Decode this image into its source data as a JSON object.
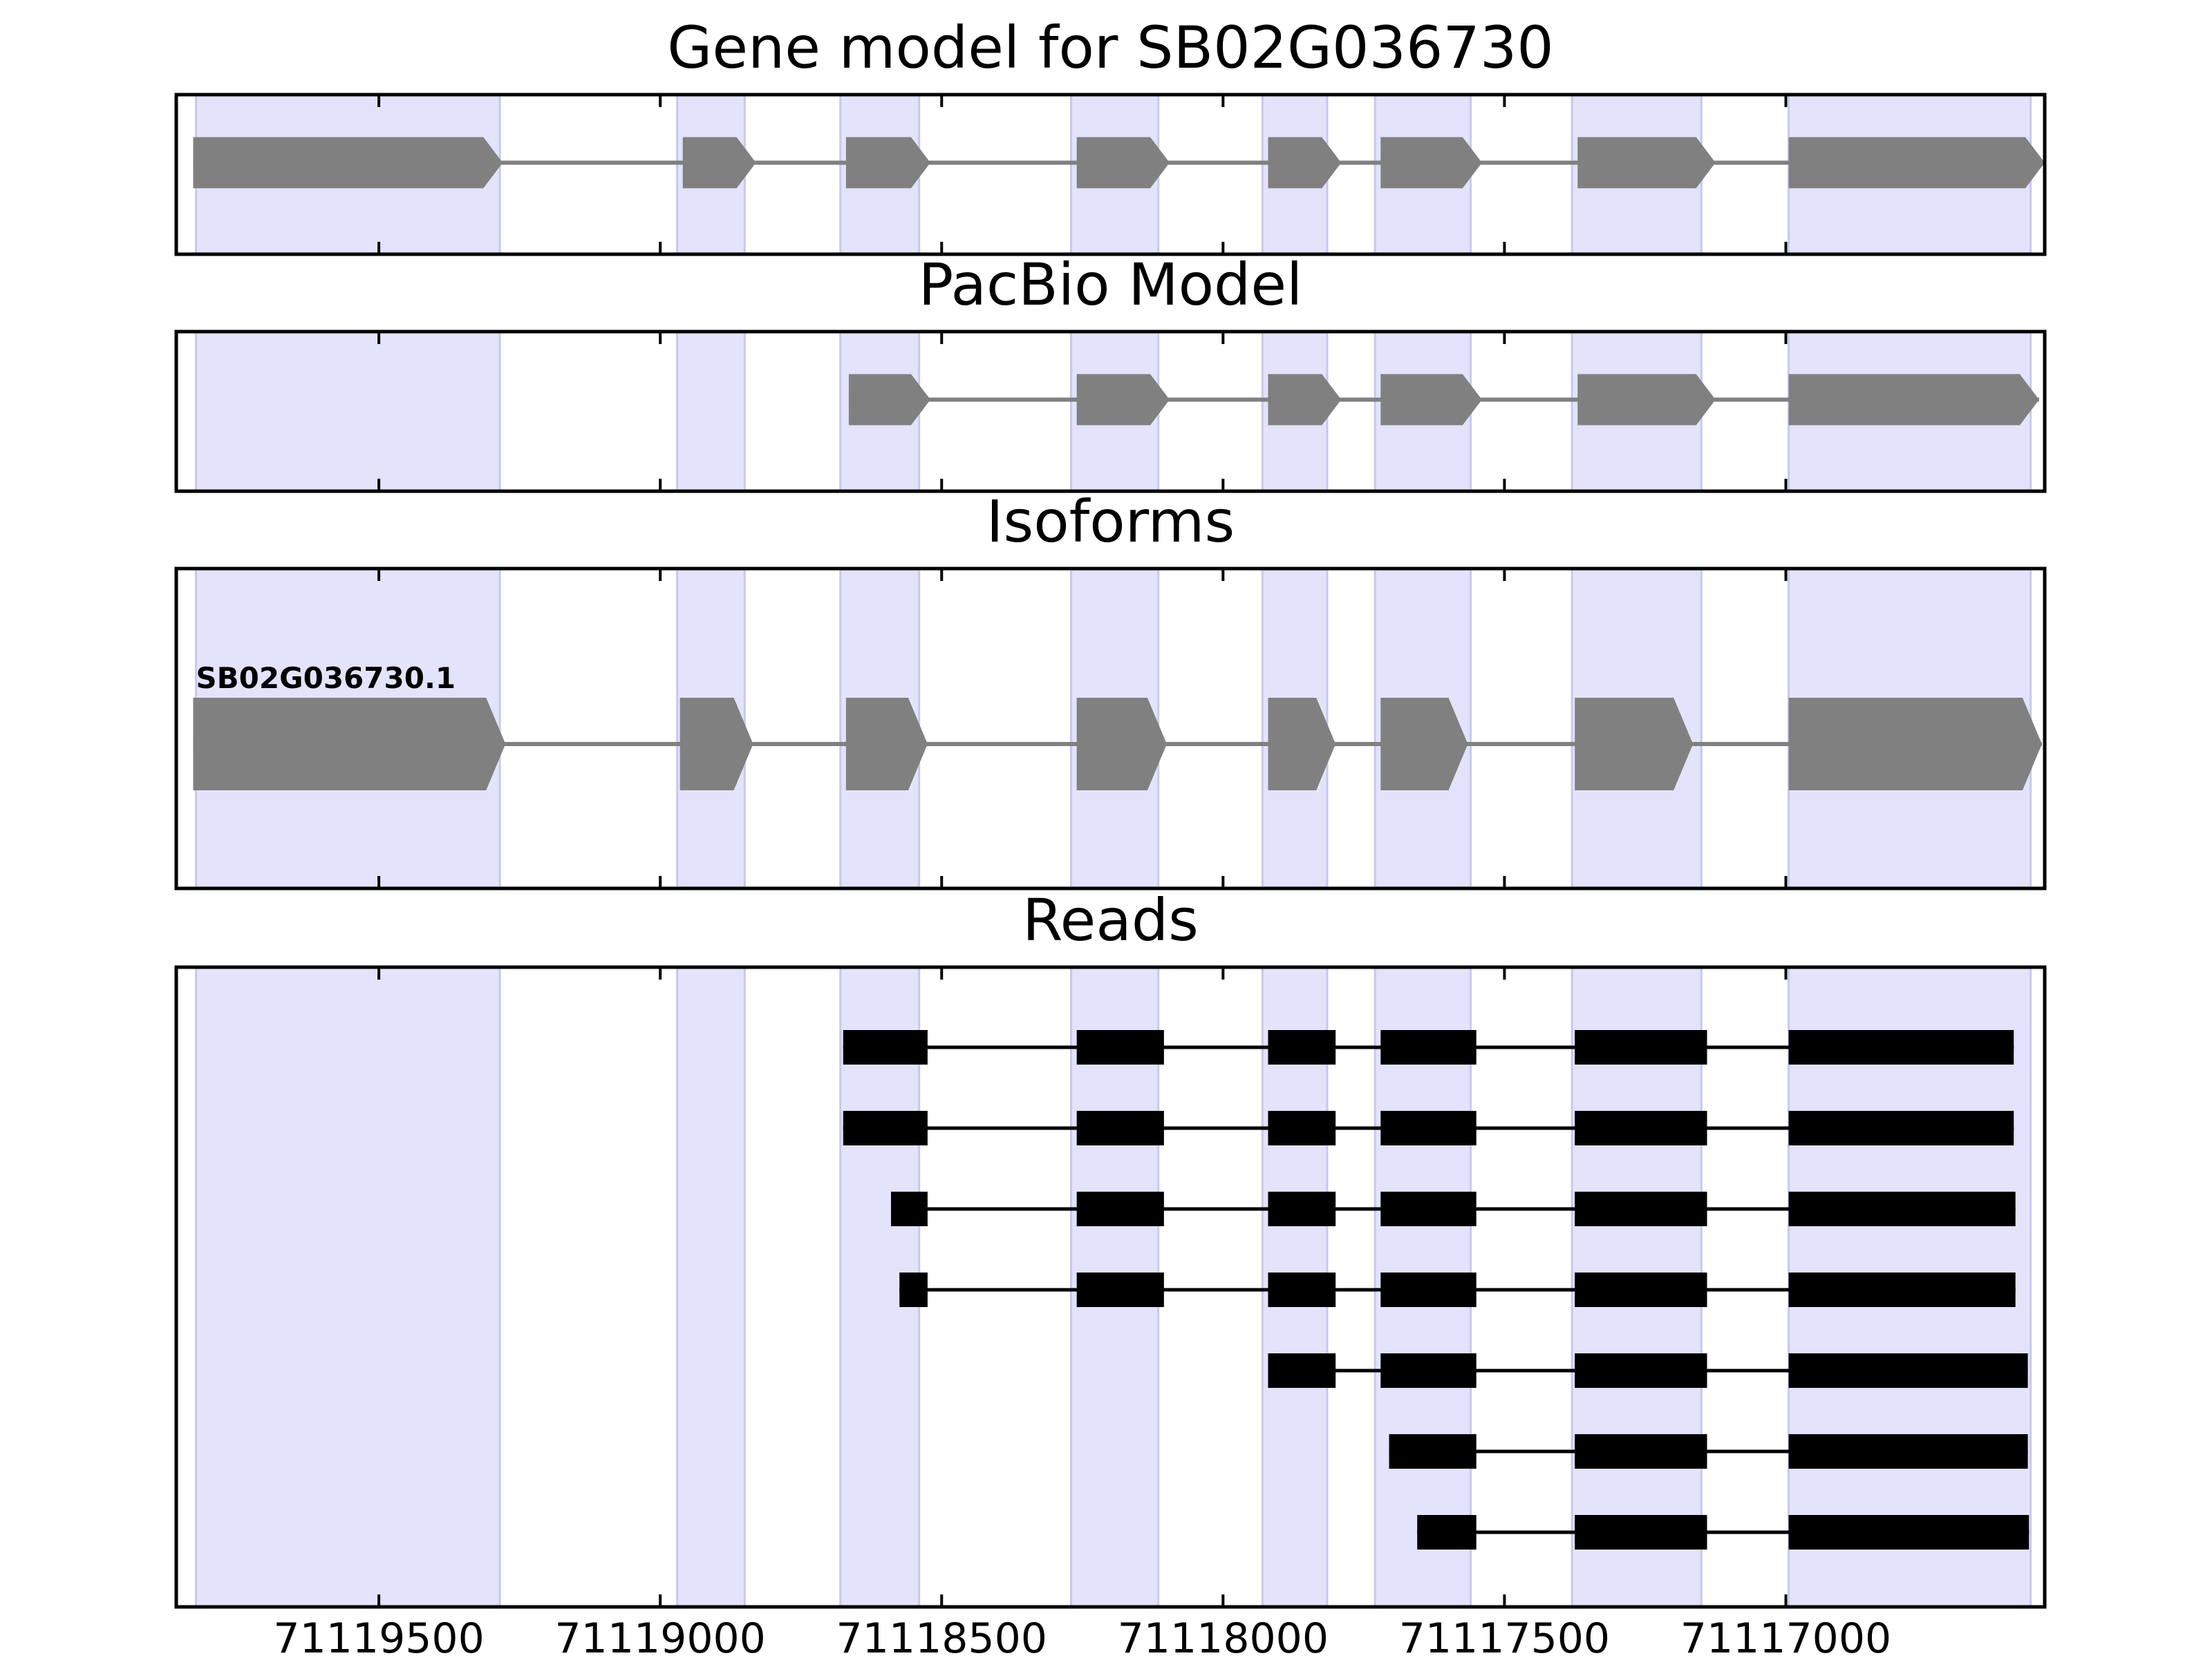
{
  "chart_data": {
    "type": "gene-track",
    "xaxis": {
      "range": [
        71119860,
        71116540
      ],
      "reversed": true,
      "ticks": [
        71119500,
        71119000,
        71118500,
        71118000,
        71117500,
        71117000
      ]
    },
    "highlight_regions": [
      [
        71119825,
        71119285
      ],
      [
        71118970,
        71118850
      ],
      [
        71118680,
        71118540
      ],
      [
        71118270,
        71118115
      ],
      [
        71117930,
        71117815
      ],
      [
        71117730,
        71117560
      ],
      [
        71117380,
        71117150
      ],
      [
        71116995,
        71116565
      ]
    ],
    "panels": [
      {
        "title": "Gene model for SB02G036730",
        "style": "arrow",
        "rows": [
          {
            "label": "",
            "exons": [
              [
                71119830,
                71119280
              ],
              [
                71118960,
                71118830
              ],
              [
                71118670,
                71118520
              ],
              [
                71118260,
                71118095
              ],
              [
                71117920,
                71117790
              ],
              [
                71117720,
                71117540
              ],
              [
                71117370,
                71117125
              ],
              [
                71116995,
                71116540
              ]
            ]
          }
        ]
      },
      {
        "title": "PacBio Model",
        "style": "arrow",
        "rows": [
          {
            "label": "",
            "exons": [
              [
                71118665,
                71118520
              ],
              [
                71118260,
                71118095
              ],
              [
                71117920,
                71117790
              ],
              [
                71117720,
                71117540
              ],
              [
                71117370,
                71117125
              ],
              [
                71116995,
                71116550
              ]
            ]
          }
        ]
      },
      {
        "title": "Isoforms",
        "style": "arrow",
        "rows": [
          {
            "label": "SB02G036730.1",
            "exons": [
              [
                71119830,
                71119275
              ],
              [
                71118965,
                71118835
              ],
              [
                71118670,
                71118525
              ],
              [
                71118260,
                71118100
              ],
              [
                71117920,
                71117800
              ],
              [
                71117720,
                71117565
              ],
              [
                71117375,
                71117165
              ],
              [
                71116995,
                71116545
              ]
            ]
          }
        ]
      },
      {
        "title": "Reads",
        "style": "block",
        "rows": [
          {
            "label": "",
            "exons": [
              [
                71118675,
                71118525
              ],
              [
                71118260,
                71118105
              ],
              [
                71117920,
                71117800
              ],
              [
                71117720,
                71117550
              ],
              [
                71117375,
                71117140
              ],
              [
                71116995,
                71116595
              ]
            ]
          },
          {
            "label": "",
            "exons": [
              [
                71118675,
                71118525
              ],
              [
                71118260,
                71118105
              ],
              [
                71117920,
                71117800
              ],
              [
                71117720,
                71117550
              ],
              [
                71117375,
                71117140
              ],
              [
                71116995,
                71116595
              ]
            ]
          },
          {
            "label": "",
            "exons": [
              [
                71118590,
                71118525
              ],
              [
                71118260,
                71118105
              ],
              [
                71117920,
                71117800
              ],
              [
                71117720,
                71117550
              ],
              [
                71117375,
                71117140
              ],
              [
                71116995,
                71116592
              ]
            ]
          },
          {
            "label": "",
            "exons": [
              [
                71118575,
                71118525
              ],
              [
                71118260,
                71118105
              ],
              [
                71117920,
                71117800
              ],
              [
                71117720,
                71117550
              ],
              [
                71117375,
                71117140
              ],
              [
                71116995,
                71116592
              ]
            ]
          },
          {
            "label": "",
            "exons": [
              [
                71117920,
                71117800
              ],
              [
                71117720,
                71117550
              ],
              [
                71117375,
                71117140
              ],
              [
                71116995,
                71116570
              ]
            ]
          },
          {
            "label": "",
            "exons": [
              [
                71117705,
                71117550
              ],
              [
                71117375,
                71117140
              ],
              [
                71116995,
                71116570
              ]
            ]
          },
          {
            "label": "",
            "exons": [
              [
                71117655,
                71117550
              ],
              [
                71117375,
                71117140
              ],
              [
                71116995,
                71116568
              ]
            ]
          }
        ]
      }
    ]
  },
  "colors": {
    "highlight_fill": "#e3e3fc",
    "highlight_edge": "#c8c8ee",
    "exon_arrow": "#808080",
    "intron_arrow": "#808080",
    "exon_block": "#000000",
    "intron_block": "#000000",
    "frame": "#000000"
  }
}
